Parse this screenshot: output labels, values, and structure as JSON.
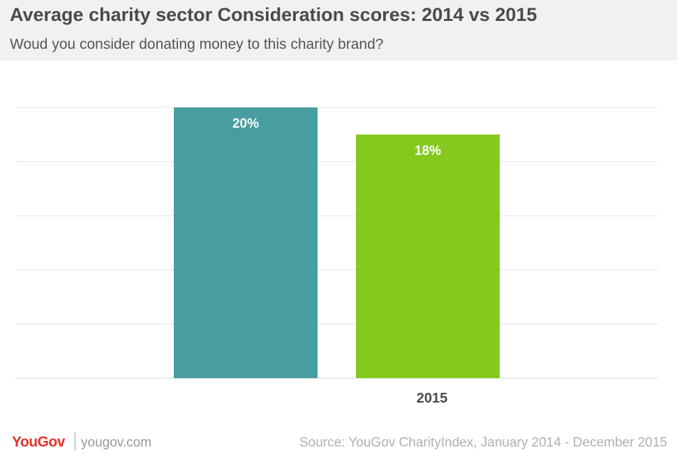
{
  "header": {
    "title": "Average charity sector Consideration scores: 2014 vs 2015",
    "subtitle": "Woud you consider donating money to this charity brand?"
  },
  "chart_data": {
    "type": "bar",
    "categories": [
      "",
      "2015"
    ],
    "values": [
      20,
      18
    ],
    "data_labels": [
      "20%",
      "18%"
    ],
    "colors": [
      "#479da0",
      "#85c91e"
    ],
    "ylim": [
      0,
      20
    ],
    "grid": true,
    "title": "",
    "xlabel": "",
    "ylabel": ""
  },
  "footer": {
    "brand": "YouGov",
    "site": "yougov.com",
    "source": "Source: YouGov CharityIndex, January 2014 - December 2015"
  },
  "colors": {
    "header_bg": "#f1f1f1",
    "grid": "#e3e3e3",
    "brand_red": "#e2342a"
  }
}
